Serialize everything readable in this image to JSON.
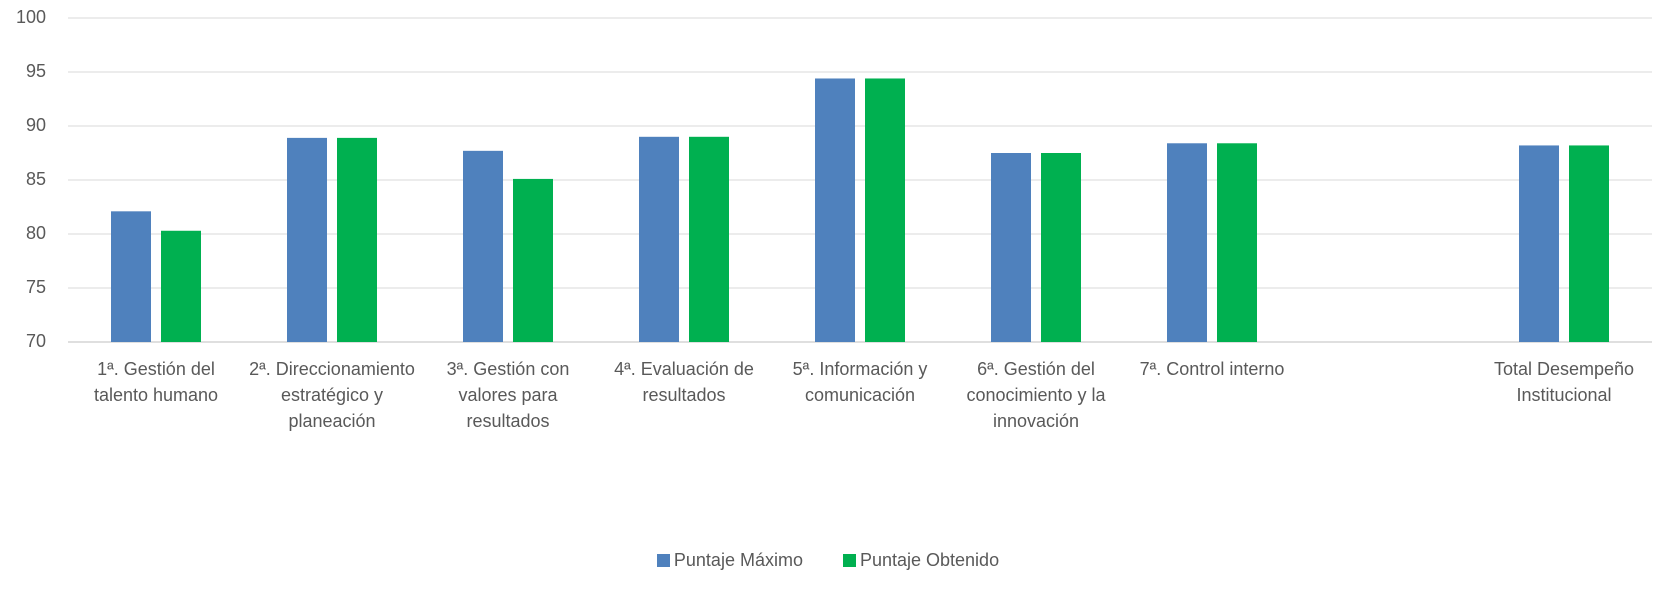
{
  "chart_data": {
    "type": "bar",
    "categories": [
      "1ª. Gestión del talento humano",
      "2ª. Direccionamiento estratégico y planeación",
      "3ª. Gestión con valores para resultados",
      "4ª. Evaluación de resultados",
      "5ª. Información y comunicación",
      "6ª. Gestión del conocimiento y la innovación",
      "7ª. Control interno",
      null,
      "Total Desempeño Institucional"
    ],
    "series": [
      {
        "name": "Puntaje Máximo",
        "color": "#4f81bd",
        "values": [
          82.1,
          88.9,
          87.7,
          89.0,
          94.4,
          87.5,
          88.4,
          null,
          88.2
        ]
      },
      {
        "name": "Puntaje Obtenido",
        "color": "#00b050",
        "values": [
          80.3,
          88.9,
          85.1,
          89.0,
          94.4,
          87.5,
          88.4,
          null,
          88.2
        ]
      }
    ],
    "ylim": [
      70,
      100
    ],
    "yticks": [
      70,
      75,
      80,
      85,
      90,
      95,
      100
    ],
    "grid": true,
    "legend": "bottom"
  }
}
